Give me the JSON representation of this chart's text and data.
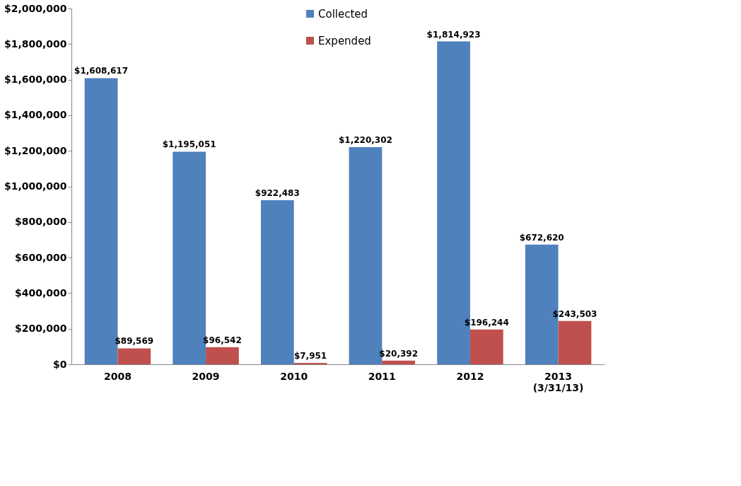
{
  "chart_data": {
    "type": "bar",
    "categories": [
      "2008",
      "2009",
      "2010",
      "2011",
      "2012",
      "2013 (3/31/13)"
    ],
    "series": [
      {
        "name": "Collected",
        "color": "#4f81bd",
        "values": [
          1608617,
          1195051,
          922483,
          1220302,
          1814923,
          672620
        ],
        "value_labels": [
          "$1,608,617",
          "$1,195,051",
          "$922,483",
          "$1,220,302",
          "$1,814,923",
          "$672,620"
        ]
      },
      {
        "name": "Expended",
        "color": "#c0504d",
        "values": [
          89569,
          96542,
          7951,
          20392,
          196244,
          243503
        ],
        "value_labels": [
          "$89,569",
          "$96,542",
          "$7,951",
          "$20,392",
          "$196,244",
          "$243,503"
        ]
      }
    ],
    "ylim": [
      0,
      2000000
    ],
    "yticks": [
      {
        "value": 0,
        "label": "$0"
      },
      {
        "value": 200000,
        "label": "$200,000"
      },
      {
        "value": 400000,
        "label": "$400,000"
      },
      {
        "value": 600000,
        "label": "$600,000"
      },
      {
        "value": 800000,
        "label": "$800,000"
      },
      {
        "value": 1000000,
        "label": "$1,000,000"
      },
      {
        "value": 1200000,
        "label": "$1,200,000"
      },
      {
        "value": 1400000,
        "label": "$1,400,000"
      },
      {
        "value": 1600000,
        "label": "$1,600,000"
      },
      {
        "value": 1800000,
        "label": "$1,800,000"
      },
      {
        "value": 2000000,
        "label": "$2,000,000"
      }
    ],
    "grid": false,
    "legend": "top"
  }
}
